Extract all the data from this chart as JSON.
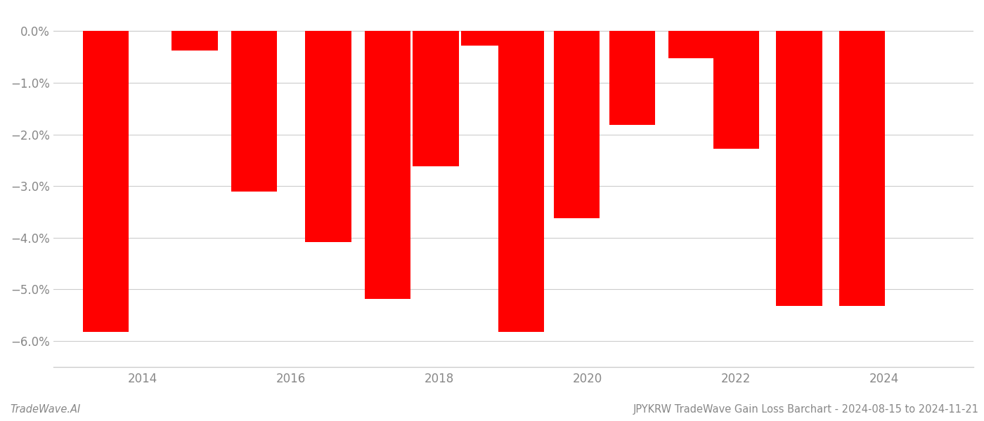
{
  "x_positions": [
    2013.5,
    2014.7,
    2015.5,
    2016.5,
    2017.3,
    2017.95,
    2018.6,
    2019.1,
    2019.85,
    2020.6,
    2021.4,
    2022.0,
    2022.85,
    2023.7
  ],
  "values": [
    -5.82,
    -0.38,
    -3.1,
    -4.08,
    -5.18,
    -2.62,
    -0.28,
    -5.82,
    -3.62,
    -1.82,
    -0.52,
    -2.28,
    -5.32,
    -5.32
  ],
  "bar_width": 0.62,
  "bar_color": "#ff0000",
  "background_color": "#ffffff",
  "ylim": [
    -6.5,
    0.4
  ],
  "xlim": [
    2012.8,
    2025.2
  ],
  "ytick_values": [
    0.0,
    -1.0,
    -2.0,
    -3.0,
    -4.0,
    -5.0,
    -6.0
  ],
  "xtick_values": [
    2014,
    2016,
    2018,
    2020,
    2022,
    2024
  ],
  "grid_color": "#cccccc",
  "tick_label_color": "#888888",
  "footer_left": "TradeWave.AI",
  "footer_right": "JPYKRW TradeWave Gain Loss Barchart - 2024-08-15 to 2024-11-21",
  "footer_color": "#888888",
  "tick_fontsize": 12,
  "footer_fontsize": 10.5
}
